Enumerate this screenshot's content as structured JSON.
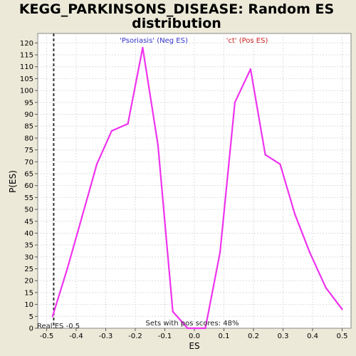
{
  "colors": {
    "background": "#ece9d8",
    "plot_background": "#ffffff",
    "curve": "#ee33ee",
    "neg_label": "#3333cc",
    "pos_label": "#cc2222",
    "marker": "#333333",
    "grid": "#dddddd"
  },
  "chart_data": {
    "type": "line",
    "title_line1": "KEGG_PARKINSONS_DISEASE: Random ES",
    "title_line2": "distribution",
    "xlabel": "ES",
    "ylabel": "P(ES)",
    "xlim": [
      -0.53,
      0.53
    ],
    "ylim": [
      0,
      124
    ],
    "grid": true,
    "x_ticks": [
      -0.5,
      -0.4,
      -0.3,
      -0.2,
      -0.1,
      0.0,
      0.1,
      0.2,
      0.3,
      0.4,
      0.5
    ],
    "x_tick_labels": [
      "-0.5",
      "-0.4",
      "-0.3",
      "-0.2",
      "-0.1",
      "0.0",
      "0.1",
      "0.2",
      "0.3",
      "0.4",
      "0.5"
    ],
    "y_ticks": [
      0,
      5,
      10,
      15,
      20,
      25,
      30,
      35,
      40,
      45,
      50,
      55,
      60,
      65,
      70,
      75,
      80,
      85,
      90,
      95,
      100,
      105,
      110,
      115,
      120
    ],
    "y_tick_labels": [
      "0",
      "5",
      "10",
      "15",
      "20",
      "25",
      "30",
      "35",
      "40",
      "45",
      "50",
      "55",
      "60",
      "65",
      "70",
      "75",
      "80",
      "85",
      "90",
      "95",
      "100",
      "105",
      "110",
      "115",
      "120"
    ],
    "series": [
      {
        "name": "Random ES distribution",
        "x": [
          -0.48,
          -0.43,
          -0.38,
          -0.33,
          -0.28,
          -0.225,
          -0.175,
          -0.123,
          -0.073,
          -0.023,
          0.037,
          0.087,
          0.137,
          0.19,
          0.24,
          0.29,
          0.34,
          0.39,
          0.445,
          0.5
        ],
        "y": [
          5,
          25,
          47,
          69,
          83,
          86,
          118,
          77,
          7,
          0,
          0,
          32,
          95,
          109,
          73,
          69,
          48,
          32,
          17,
          8
        ]
      }
    ],
    "neg_label": "'Psoriasis' (Neg ES)",
    "pos_label": "'ct' (Pos ES)",
    "real_es": -0.476,
    "real_es_label": "Real ES -0.5",
    "pos_scores_label": "Sets with pos scores: 48%"
  }
}
